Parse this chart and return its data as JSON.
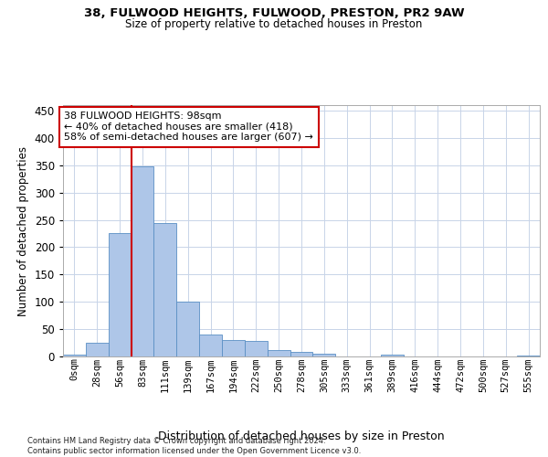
{
  "title1": "38, FULWOOD HEIGHTS, FULWOOD, PRESTON, PR2 9AW",
  "title2": "Size of property relative to detached houses in Preston",
  "xlabel": "Distribution of detached houses by size in Preston",
  "ylabel": "Number of detached properties",
  "footnote": "Contains HM Land Registry data © Crown copyright and database right 2024.\nContains public sector information licensed under the Open Government Licence v3.0.",
  "bar_labels": [
    "0sqm",
    "28sqm",
    "56sqm",
    "83sqm",
    "111sqm",
    "139sqm",
    "167sqm",
    "194sqm",
    "222sqm",
    "250sqm",
    "278sqm",
    "305sqm",
    "333sqm",
    "361sqm",
    "389sqm",
    "416sqm",
    "444sqm",
    "472sqm",
    "500sqm",
    "527sqm",
    "555sqm"
  ],
  "bar_values": [
    3,
    25,
    225,
    348,
    245,
    100,
    40,
    30,
    28,
    12,
    9,
    5,
    0,
    0,
    3,
    0,
    0,
    0,
    0,
    0,
    2
  ],
  "bar_color": "#aec6e8",
  "bar_edge_color": "#5a8fc4",
  "vline_color": "#cc0000",
  "vline_pos": 2.5,
  "annotation_box_text": "38 FULWOOD HEIGHTS: 98sqm\n← 40% of detached houses are smaller (418)\n58% of semi-detached houses are larger (607) →",
  "annotation_box_color": "#cc0000",
  "annotation_box_fill": "#ffffff",
  "ylim": [
    0,
    460
  ],
  "yticks": [
    0,
    50,
    100,
    150,
    200,
    250,
    300,
    350,
    400,
    450
  ],
  "bg_color": "#ffffff",
  "grid_color": "#c8d4e8"
}
